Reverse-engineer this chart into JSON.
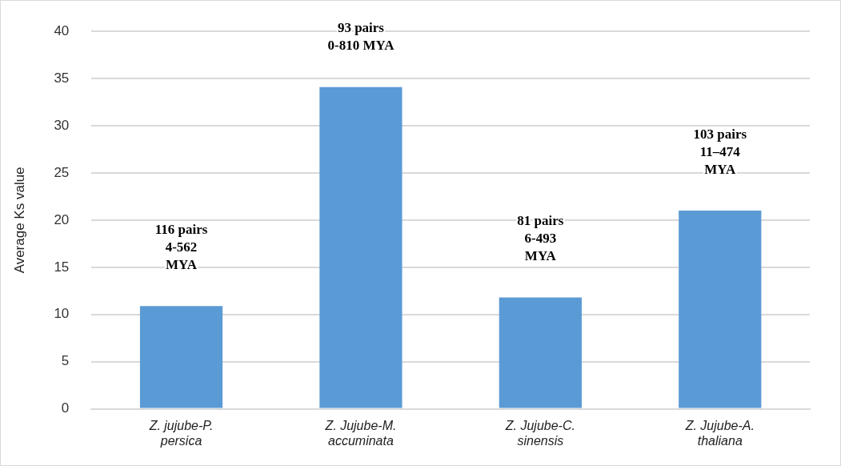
{
  "chart_data": {
    "type": "bar",
    "ylabel": "Average Ks value",
    "categories": [
      "Z. jujube-P. persica",
      "Z. Jujube-M. accuminata",
      "Z. Jujube-C. sinensis",
      "Z. Jujube-A. thaliana"
    ],
    "values": [
      10.9,
      34.1,
      11.8,
      21.0
    ],
    "color": "#5b9bd5",
    "ylim": [
      0,
      40
    ],
    "yticks": [
      0,
      5,
      10,
      15,
      20,
      25,
      30,
      35,
      40
    ],
    "grid": "y",
    "annotations": [
      "116 pairs\n4-562\nMYA",
      "93 pairs\n0-810 MYA",
      "81 pairs\n6-493\nMYA",
      "103 pairs\n11–474\nMYA"
    ]
  }
}
